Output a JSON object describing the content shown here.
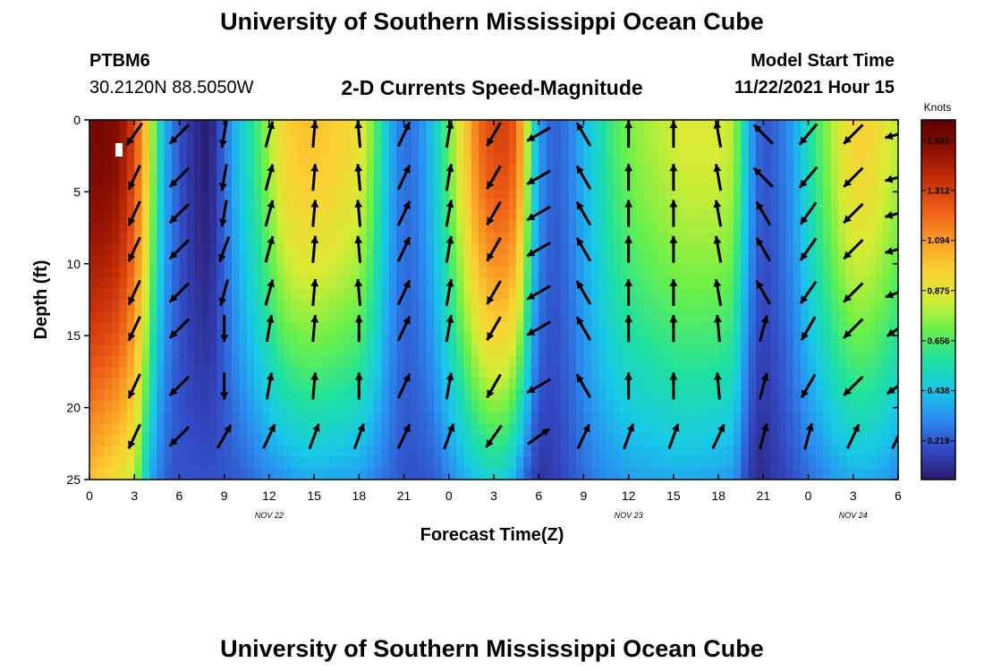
{
  "page_title": "University of Southern Mississippi Ocean Cube",
  "page_title_repeat": "University of Southern Mississippi Ocean Cube",
  "station": {
    "id": "PTBM6",
    "coords": "30.2120N  88.5050W"
  },
  "model": {
    "label": "Model Start Time",
    "time": "11/22/2021 Hour 15"
  },
  "colors": {
    "scale": [
      "#2b1a6e",
      "#3348c2",
      "#2b8cf0",
      "#18c9e8",
      "#1fe0a0",
      "#69f04a",
      "#d7ec34",
      "#fcd034",
      "#fb9a24",
      "#ec5d16",
      "#c52f08",
      "#8b0f02",
      "#5e0200"
    ],
    "arrow": "#000000"
  },
  "chart_data": {
    "type": "heatmap",
    "title": "2-D Currents Speed-Magnitude",
    "xlabel": "Forecast Time(Z)",
    "ylabel": "Depth (ft)",
    "ylim": [
      0,
      25
    ],
    "xlim_hours": [
      0,
      54
    ],
    "x_tick_labels": [
      "0",
      "3",
      "6",
      "9",
      "12",
      "15",
      "18",
      "21",
      "0",
      "3",
      "6",
      "9",
      "12",
      "15",
      "18",
      "21",
      "0",
      "3",
      "6"
    ],
    "y_tick_labels": [
      "0",
      "5",
      "10",
      "15",
      "20",
      "25"
    ],
    "y_ticks": [
      0,
      5,
      10,
      15,
      20,
      25
    ],
    "date_labels": [
      {
        "label": "NOV 22",
        "hour": 12
      },
      {
        "label": "NOV 23",
        "hour": 36
      },
      {
        "label": "NOV 24",
        "hour": 51
      }
    ],
    "colorbar": {
      "unit": "Knots",
      "range": [
        0.05,
        1.62
      ],
      "tick_values": [
        1.531,
        1.312,
        1.094,
        0.875,
        0.656,
        0.438,
        0.219
      ],
      "tick_labels": [
        "1.531",
        "1.312",
        "1.094",
        "0.875",
        "0.656",
        "0.438",
        "0.219"
      ]
    },
    "speed_profile": {
      "hours": [
        0,
        1,
        2,
        3,
        3.5,
        4,
        4.5,
        5,
        5.5,
        6,
        7,
        8,
        9,
        10,
        11,
        12,
        13,
        14,
        15,
        16,
        17,
        18,
        19,
        20,
        21,
        22,
        23,
        24,
        25,
        26,
        27,
        28,
        28.5,
        29,
        29.5,
        30,
        31,
        32,
        33,
        34,
        35,
        36,
        37,
        38,
        39,
        40,
        41,
        42,
        43,
        43.5,
        44,
        44.5,
        45,
        46,
        47,
        48,
        49,
        50,
        51,
        52,
        53,
        54
      ],
      "surface": [
        1.55,
        1.55,
        1.5,
        1.3,
        1.1,
        0.9,
        0.6,
        0.4,
        0.3,
        0.2,
        0.1,
        0.05,
        0.25,
        0.45,
        0.6,
        0.78,
        0.95,
        1.0,
        1.0,
        0.98,
        0.95,
        0.9,
        0.7,
        0.4,
        0.25,
        0.3,
        0.45,
        0.7,
        0.95,
        1.2,
        1.3,
        1.3,
        1.2,
        1.0,
        0.6,
        0.35,
        0.22,
        0.28,
        0.4,
        0.52,
        0.65,
        0.72,
        0.77,
        0.8,
        0.83,
        0.85,
        0.85,
        0.85,
        0.8,
        0.6,
        0.4,
        0.28,
        0.2,
        0.25,
        0.35,
        0.55,
        0.7,
        0.85,
        0.95,
        0.95,
        0.88,
        0.8
      ],
      "bottom": [
        1.0,
        0.95,
        0.9,
        0.8,
        0.6,
        0.4,
        0.3,
        0.25,
        0.2,
        0.2,
        0.2,
        0.2,
        0.2,
        0.22,
        0.26,
        0.3,
        0.33,
        0.36,
        0.38,
        0.37,
        0.36,
        0.35,
        0.3,
        0.25,
        0.2,
        0.2,
        0.22,
        0.3,
        0.38,
        0.45,
        0.5,
        0.45,
        0.35,
        0.25,
        0.18,
        0.12,
        0.15,
        0.2,
        0.25,
        0.3,
        0.32,
        0.35,
        0.36,
        0.37,
        0.38,
        0.38,
        0.37,
        0.36,
        0.34,
        0.25,
        0.15,
        0.1,
        0.1,
        0.15,
        0.2,
        0.25,
        0.3,
        0.35,
        0.38,
        0.38,
        0.35,
        0.3
      ]
    },
    "vector_grid": {
      "hours": [
        3,
        6,
        9,
        12,
        15,
        18,
        21,
        24,
        27,
        30,
        33,
        36,
        39,
        42,
        45,
        48,
        51,
        54
      ],
      "depths": [
        1,
        4,
        6.5,
        9,
        12,
        14.5,
        18.5,
        22
      ],
      "directions_deg": [
        [
          215,
          225,
          190,
          15,
          5,
          355,
          25,
          10,
          210,
          240,
          330,
          0,
          0,
          350,
          315,
          220,
          225,
          255
        ],
        [
          205,
          225,
          190,
          15,
          5,
          355,
          25,
          10,
          210,
          240,
          330,
          0,
          0,
          350,
          315,
          220,
          225,
          255
        ],
        [
          205,
          225,
          190,
          15,
          5,
          355,
          25,
          10,
          210,
          240,
          330,
          0,
          0,
          350,
          330,
          215,
          225,
          255
        ],
        [
          205,
          225,
          200,
          15,
          5,
          355,
          25,
          10,
          210,
          240,
          330,
          0,
          0,
          350,
          330,
          215,
          225,
          255
        ],
        [
          205,
          225,
          195,
          15,
          5,
          355,
          25,
          10,
          210,
          240,
          330,
          0,
          0,
          350,
          330,
          215,
          225,
          250
        ],
        [
          205,
          225,
          180,
          10,
          5,
          360,
          25,
          10,
          210,
          240,
          330,
          0,
          0,
          355,
          15,
          210,
          225,
          235
        ],
        [
          205,
          225,
          180,
          10,
          5,
          360,
          25,
          10,
          210,
          240,
          330,
          0,
          0,
          355,
          15,
          210,
          225,
          235
        ],
        [
          205,
          225,
          30,
          25,
          20,
          20,
          25,
          20,
          215,
          55,
          25,
          20,
          20,
          25,
          15,
          15,
          25,
          25
        ]
      ]
    }
  }
}
